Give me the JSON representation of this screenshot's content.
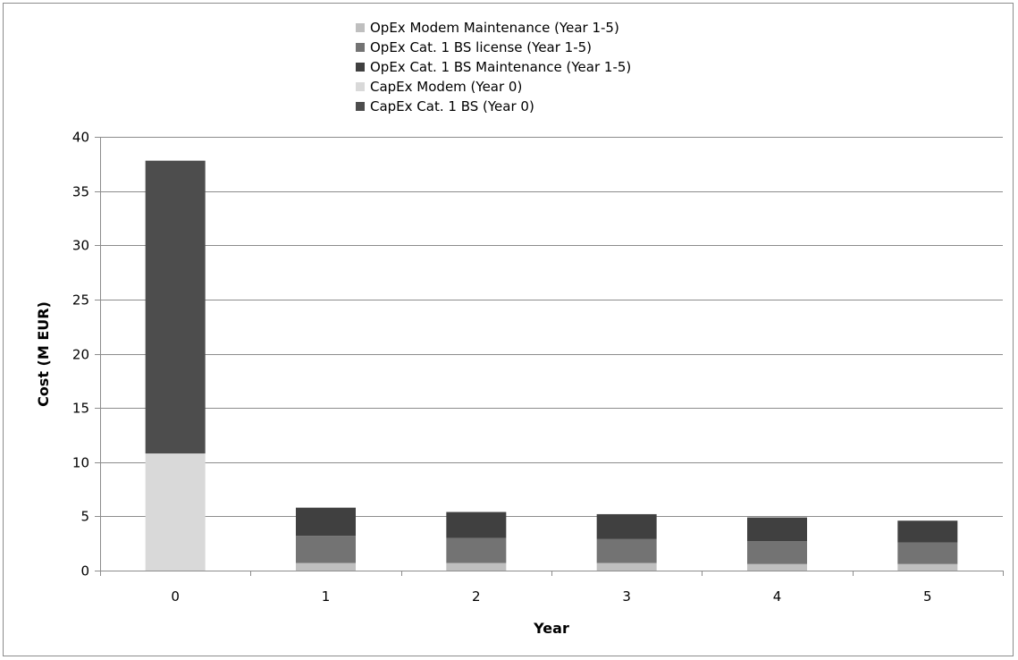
{
  "chart_data": {
    "type": "bar",
    "stacked": true,
    "title": "",
    "xlabel": "Year",
    "ylabel": "Cost (M EUR)",
    "ylim": [
      0,
      40
    ],
    "yticks": [
      0,
      5,
      10,
      15,
      20,
      25,
      30,
      35,
      40
    ],
    "categories": [
      "0",
      "1",
      "2",
      "3",
      "4",
      "5"
    ],
    "grid": true,
    "legend_position": "top-center",
    "series": [
      {
        "name": "CapEx Cat. 1 BS (Year 0)",
        "color": "#4d4d4d",
        "values": [
          27.0,
          0,
          0,
          0,
          0,
          0
        ]
      },
      {
        "name": "CapEx Modem (Year 0)",
        "color": "#d9d9d9",
        "values": [
          10.8,
          0,
          0,
          0,
          0,
          0
        ]
      },
      {
        "name": "OpEx Cat. 1 BS Maintenance (Year 1-5)",
        "color": "#404040",
        "values": [
          0,
          2.6,
          2.4,
          2.3,
          2.2,
          2.0
        ]
      },
      {
        "name": "OpEx Cat. 1 BS license (Year 1-5)",
        "color": "#737373",
        "values": [
          0,
          2.5,
          2.3,
          2.2,
          2.1,
          2.0
        ]
      },
      {
        "name": "OpEx Modem Maintenance (Year 1-5)",
        "color": "#bfbfbf",
        "values": [
          0,
          0.7,
          0.7,
          0.7,
          0.6,
          0.6
        ]
      }
    ],
    "stack_order": [
      "OpEx Modem Maintenance (Year 1-5)",
      "OpEx Cat. 1 BS license (Year 1-5)",
      "OpEx Cat. 1 BS Maintenance (Year 1-5)",
      "CapEx Modem (Year 0)",
      "CapEx Cat. 1 BS (Year 0)"
    ],
    "legend_order": [
      "OpEx Modem Maintenance (Year 1-5)",
      "OpEx Cat. 1 BS license (Year 1-5)",
      "OpEx Cat. 1 BS Maintenance (Year 1-5)",
      "CapEx Modem (Year 0)",
      "CapEx Cat. 1 BS (Year 0)"
    ]
  }
}
